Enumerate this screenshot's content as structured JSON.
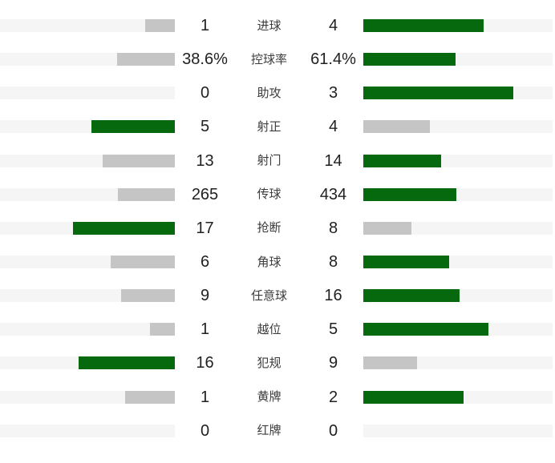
{
  "chart_data": {
    "type": "bar",
    "subtype": "paired-horizontal-comparison",
    "title": "",
    "categories": [
      "进球",
      "控球率",
      "助攻",
      "射正",
      "射门",
      "传球",
      "抢断",
      "角球",
      "任意球",
      "越位",
      "犯规",
      "黄牌",
      "红牌"
    ],
    "series": [
      {
        "name": "home-team-left",
        "side": "left",
        "values": [
          1,
          38.6,
          0,
          5,
          13,
          265,
          17,
          6,
          9,
          1,
          16,
          1,
          0
        ],
        "labels": [
          "1",
          "38.6%",
          "0",
          "5",
          "13",
          "265",
          "17",
          "6",
          "9",
          "1",
          "16",
          "1",
          "0"
        ]
      },
      {
        "name": "away-team-right",
        "side": "right",
        "values": [
          4,
          61.4,
          3,
          4,
          14,
          434,
          8,
          8,
          16,
          5,
          9,
          2,
          0
        ],
        "labels": [
          "4",
          "61.4%",
          "3",
          "4",
          "14",
          "434",
          "8",
          "8",
          "16",
          "5",
          "9",
          "2",
          "0"
        ]
      }
    ],
    "layout_hints": {
      "bars_grow_from_center_labels_outward": false,
      "left_bars_anchored_right": true,
      "right_bars_anchored_left": true,
      "winner_side_highlighted": true
    },
    "colors": {
      "winner": "#07690D",
      "loser": "#C5C5C5",
      "track": "#F5F5F5",
      "value_text": "#212121",
      "label_text": "#3C3C3C",
      "background": "#FFFFFF"
    }
  }
}
